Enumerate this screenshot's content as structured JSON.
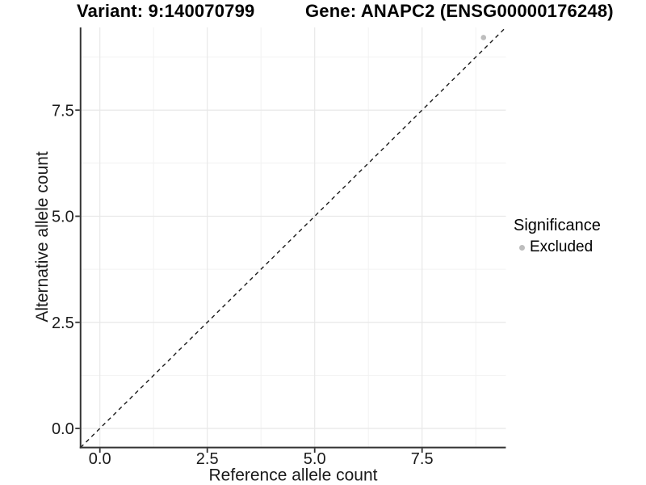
{
  "header": {
    "variant_title": "Variant: 9:140070799",
    "gene_title": "Gene: ANAPC2 (ENSG00000176248)"
  },
  "legend": {
    "title": "Significance",
    "items": [
      {
        "label": "Excluded",
        "color": "#bdbdbd",
        "marker": "circle"
      }
    ]
  },
  "chart_data": {
    "type": "scatter",
    "xlabel": "Reference allele count",
    "ylabel": "Alternative allele count",
    "xlim": [
      -0.45,
      9.45
    ],
    "ylim": [
      -0.45,
      9.45
    ],
    "x_ticks": [
      0,
      2.5,
      5,
      7.5
    ],
    "x_tick_labels": [
      "0.0",
      "2.5",
      "5.0",
      "7.5"
    ],
    "y_ticks": [
      0,
      2.5,
      5,
      7.5
    ],
    "y_tick_labels": [
      "0.0",
      "2.5",
      "5.0",
      "7.5"
    ],
    "x_minor_breaks": [
      1.25,
      3.75,
      6.25,
      8.75
    ],
    "y_minor_breaks": [
      1.25,
      3.75,
      6.25,
      8.75
    ],
    "grid": {
      "major": true,
      "minor": true
    },
    "legend_position": "right",
    "series": [
      {
        "name": "Excluded",
        "color": "#bdbdbd",
        "points": [
          {
            "x": 8.93,
            "y": 9.21
          }
        ]
      }
    ],
    "reference_line": {
      "style": "dashed",
      "slope": 1,
      "intercept": 0,
      "color": "#1a1a1a"
    }
  },
  "colors": {
    "background": "#ffffff",
    "grid_major": "#e8e8e8",
    "grid_minor": "#f2f2f2",
    "axis_line": "#333333",
    "axis_text": "#1a1a1a",
    "title_text": "#000000",
    "point": "#bdbdbd"
  }
}
